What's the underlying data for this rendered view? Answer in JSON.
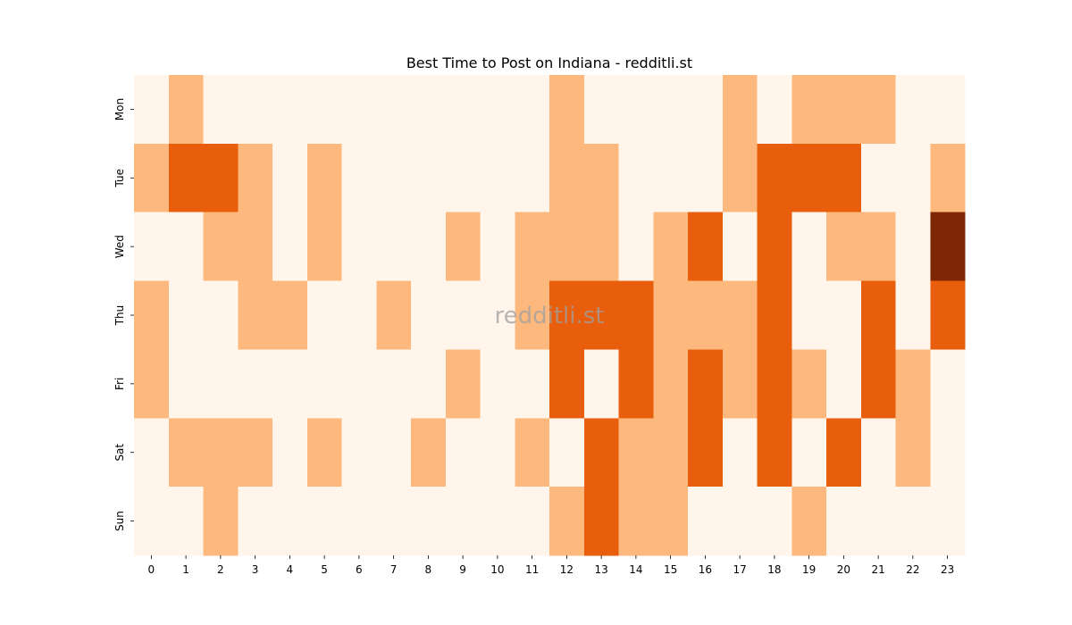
{
  "colors": {
    "level_0": "#fff5eb",
    "level_1": "#fdb97d",
    "level_2": "#e95e0d",
    "level_3": "#7f2704",
    "tick": "#000000"
  },
  "chart_data": {
    "type": "heatmap",
    "title": "Best Time to Post on Indiana - redditli.st",
    "watermark": "redditli.st",
    "x_categories": [
      "0",
      "1",
      "2",
      "3",
      "4",
      "5",
      "6",
      "7",
      "8",
      "9",
      "10",
      "11",
      "12",
      "13",
      "14",
      "15",
      "16",
      "17",
      "18",
      "19",
      "20",
      "21",
      "22",
      "23"
    ],
    "y_categories": [
      "Mon",
      "Tue",
      "Wed",
      "Thu",
      "Fri",
      "Sat",
      "Sun"
    ],
    "xlabel": "",
    "ylabel": "",
    "colorbar": false,
    "values": [
      [
        0,
        1,
        0,
        0,
        0,
        0,
        0,
        0,
        0,
        0,
        0,
        0,
        1,
        0,
        0,
        0,
        0,
        1,
        0,
        1,
        1,
        1,
        0,
        0
      ],
      [
        1,
        2,
        2,
        1,
        0,
        1,
        0,
        0,
        0,
        0,
        0,
        0,
        1,
        1,
        0,
        0,
        0,
        1,
        2,
        2,
        2,
        0,
        0,
        1
      ],
      [
        0,
        0,
        1,
        1,
        0,
        1,
        0,
        0,
        0,
        1,
        0,
        1,
        1,
        1,
        0,
        1,
        2,
        0,
        2,
        0,
        1,
        1,
        0,
        3
      ],
      [
        1,
        0,
        0,
        1,
        1,
        0,
        0,
        1,
        0,
        0,
        0,
        1,
        2,
        2,
        2,
        1,
        1,
        1,
        2,
        0,
        0,
        2,
        0,
        2
      ],
      [
        1,
        0,
        0,
        0,
        0,
        0,
        0,
        0,
        0,
        1,
        0,
        0,
        2,
        0,
        2,
        1,
        2,
        1,
        2,
        1,
        0,
        2,
        1,
        0
      ],
      [
        0,
        1,
        1,
        1,
        0,
        1,
        0,
        0,
        1,
        0,
        0,
        1,
        0,
        2,
        1,
        1,
        2,
        0,
        2,
        0,
        2,
        0,
        1,
        0
      ],
      [
        0,
        0,
        1,
        0,
        0,
        0,
        0,
        0,
        0,
        0,
        0,
        0,
        1,
        2,
        1,
        1,
        0,
        0,
        0,
        1,
        0,
        0,
        0,
        0
      ]
    ]
  }
}
